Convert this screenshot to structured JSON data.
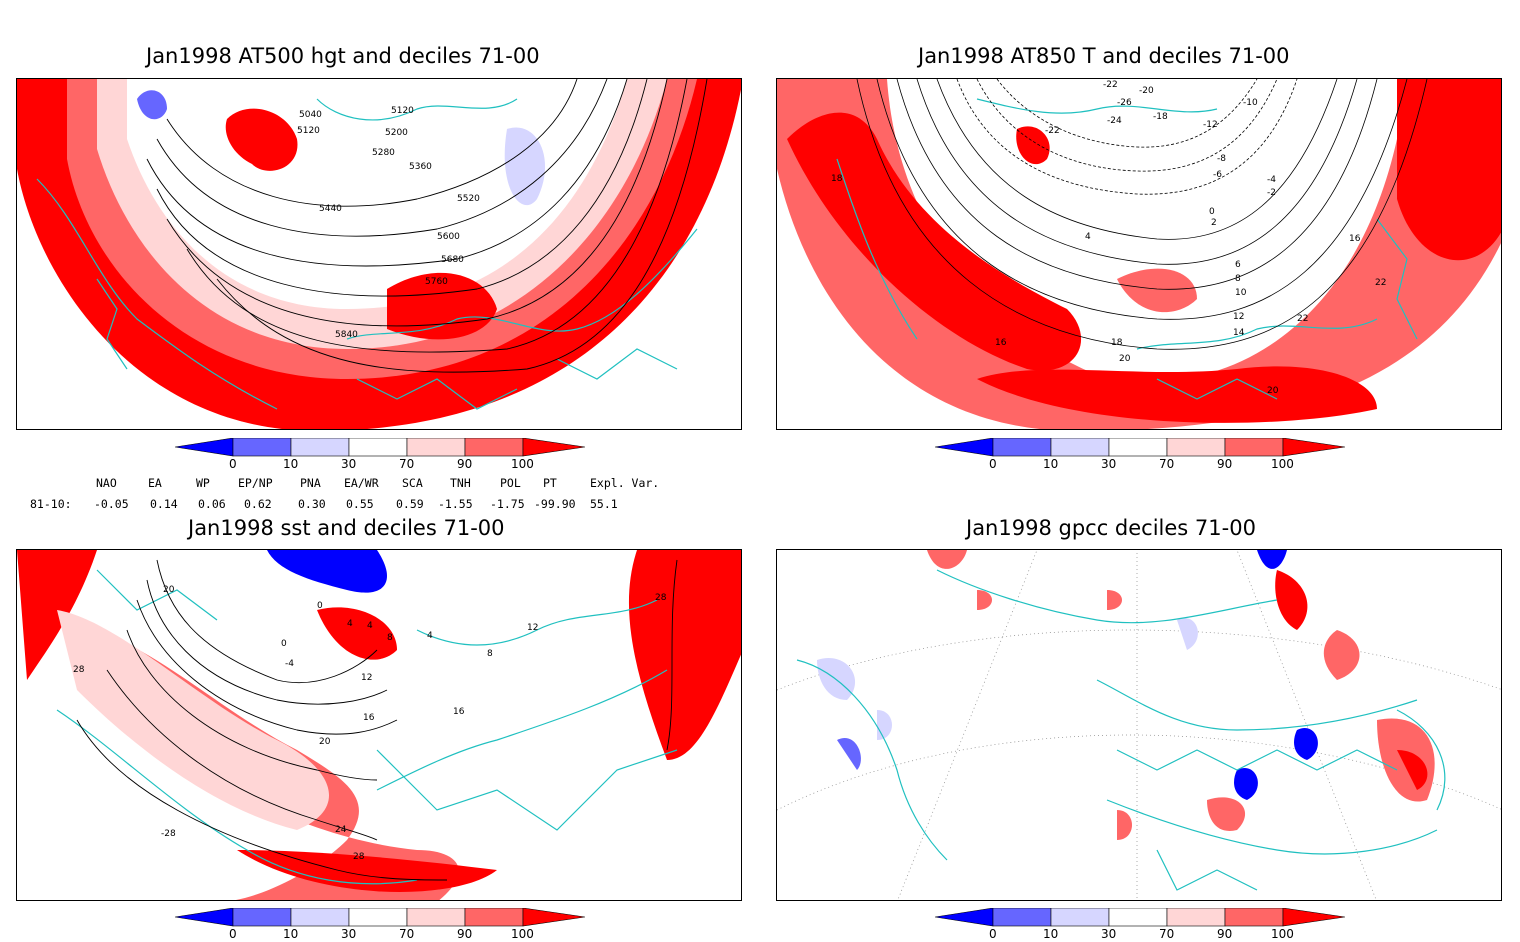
{
  "panels": [
    {
      "title": "Jan1998 AT500 hgt and deciles 71-00",
      "contours": [
        "5040",
        "5120",
        "5120",
        "5200",
        "5280",
        "5360",
        "5440",
        "5520",
        "5600",
        "5680",
        "5760",
        "5840"
      ]
    },
    {
      "title": "Jan1998 AT850 T and deciles 71-00",
      "contours": [
        "-22",
        "-26",
        "-24",
        "-22",
        "-18",
        "-20",
        "-10",
        "-12",
        "-8",
        "-6",
        "-4",
        "-2",
        "0",
        "2",
        "4",
        "6",
        "8",
        "10",
        "12",
        "14",
        "16",
        "16",
        "18",
        "18",
        "20",
        "20",
        "22",
        "22"
      ]
    },
    {
      "title": "Jan1998 sst and deciles 71-00",
      "contours": [
        "20",
        "0",
        "4",
        "8",
        "4",
        "4",
        "0",
        "-4",
        "12",
        "16",
        "20",
        "16",
        "24",
        "28",
        "-28",
        "28",
        "28",
        "8",
        "12"
      ]
    },
    {
      "title": "Jan1998 gpcc deciles 71-00",
      "contours": []
    }
  ],
  "colorbar": {
    "ticks": [
      "0",
      "10",
      "30",
      "70",
      "90",
      "100"
    ],
    "colors": [
      "#0000ff",
      "#6666ff",
      "#d6d6ff",
      "#ffffff",
      "#ffd6d6",
      "#ff6666",
      "#ff0000"
    ]
  },
  "indices": {
    "header": [
      "NAO",
      "EA",
      "WP",
      "EP/NP",
      "PNA",
      "EA/WR",
      "SCA",
      "TNH",
      "POL",
      "PT",
      "Expl. Var."
    ],
    "row_label": "81-10:",
    "values": [
      "-0.05",
      "0.14",
      "0.06",
      "0.62",
      "0.30",
      "0.55",
      "0.59",
      "-1.55",
      "-1.75",
      "-99.90",
      "55.1"
    ]
  },
  "colors": {
    "coastline": "#20c0c0",
    "contour": "#000000",
    "graticule": "#888888"
  }
}
